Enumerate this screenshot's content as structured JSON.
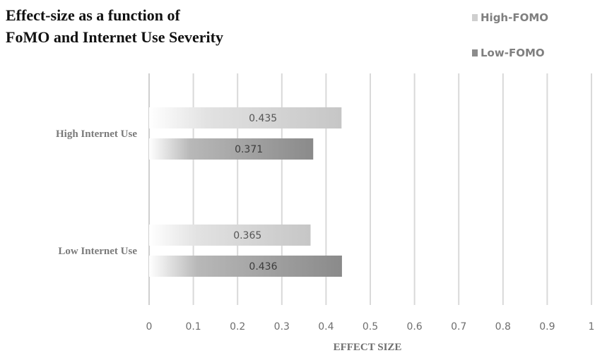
{
  "chart_data": {
    "type": "bar",
    "orientation": "horizontal",
    "title": "Effect-size as a function of\nFoMO and Internet Use Severity",
    "xlabel": "EFFECT SIZE",
    "ylabel": "",
    "xlim": [
      0,
      1
    ],
    "x_ticks": [
      "0",
      "0.1",
      "0.2",
      "0.3",
      "0.4",
      "0.5",
      "0.6",
      "0.7",
      "0.8",
      "0.9",
      "1"
    ],
    "grid": "vertical",
    "legend_position": "top-right",
    "categories": [
      "High Internet Use",
      "Low Internet Use"
    ],
    "series": [
      {
        "name": "High-FOMO",
        "values": [
          0.435,
          0.365
        ],
        "labels": [
          "0.435",
          "0.365"
        ],
        "color": "#c8c8c8"
      },
      {
        "name": "Low-FOMO",
        "values": [
          0.371,
          0.436
        ],
        "labels": [
          "0.371",
          "0.436"
        ],
        "color": "#8c8c8c"
      }
    ]
  }
}
